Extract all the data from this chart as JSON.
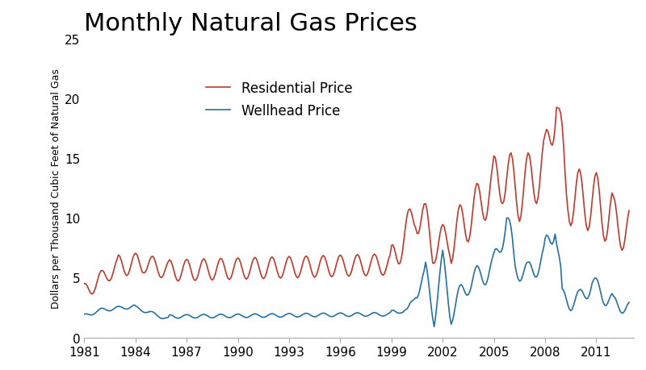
{
  "title": "Monthly Natural Gas Prices",
  "ylabel": "Dollars per Thousand Cubic Feet of Natural Gas",
  "ylim": [
    0,
    25
  ],
  "xlim": [
    1981.0,
    2013.2
  ],
  "xticks": [
    1981,
    1984,
    1987,
    1990,
    1993,
    1996,
    1999,
    2002,
    2005,
    2008,
    2011
  ],
  "yticks": [
    0,
    5,
    10,
    15,
    20,
    25
  ],
  "residential_color": "#C1392B",
  "wellhead_color": "#2471A3",
  "title_fontsize": 22,
  "legend_fontsize": 12,
  "axis_label_fontsize": 9,
  "tick_fontsize": 11,
  "line_width": 1.2,
  "legend_entries": [
    "Residential Price",
    "Wellhead Price"
  ],
  "background_color": "#ffffff"
}
